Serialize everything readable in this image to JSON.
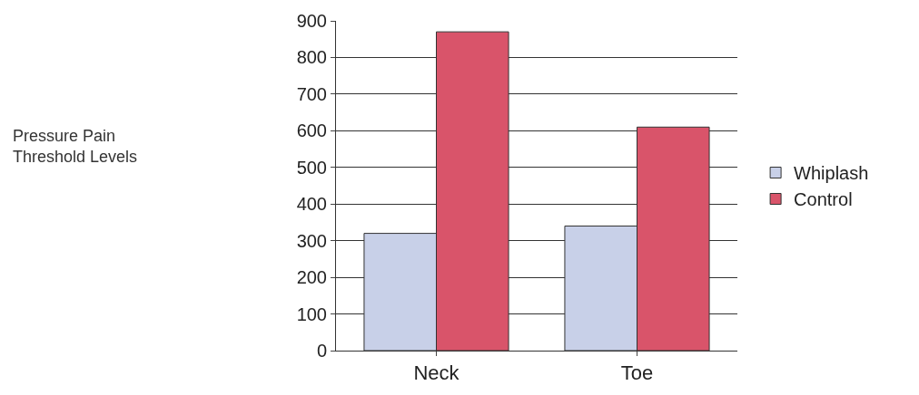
{
  "chart_data": {
    "type": "bar",
    "annotations": [
      "Pressure Pain\nThreshold Levels"
    ],
    "categories": [
      "Neck",
      "Toe"
    ],
    "series": [
      {
        "name": "Whiplash",
        "color": "#c8d0e8",
        "values": [
          320,
          340
        ]
      },
      {
        "name": "Control",
        "color": "#d9546a",
        "values": [
          870,
          610
        ]
      }
    ],
    "ylim": [
      0,
      900
    ],
    "yticks": [
      0,
      100,
      200,
      300,
      400,
      500,
      600,
      700,
      800,
      900
    ],
    "grid": "y",
    "legend": "right"
  }
}
